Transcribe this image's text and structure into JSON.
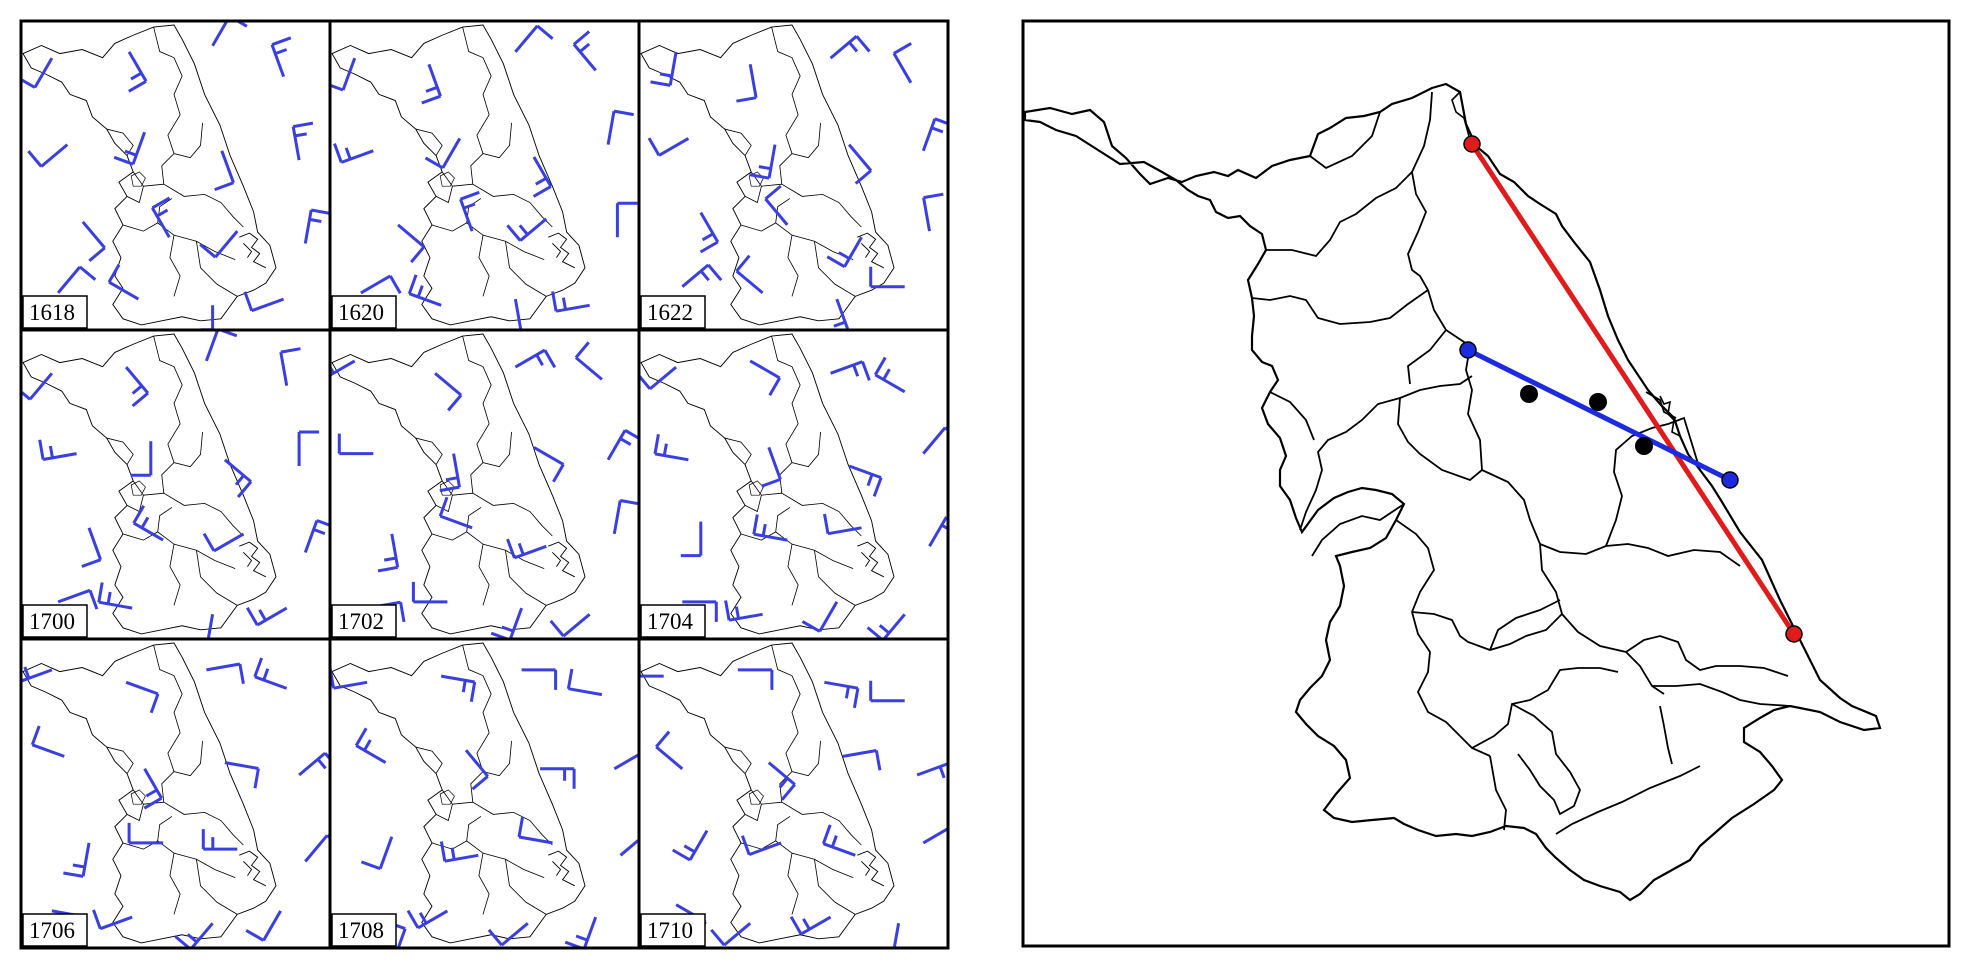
{
  "wind_panels": [
    {
      "label": "1618",
      "barbs": [
        [
          0.1,
          0.12,
          210,
          1
        ],
        [
          0.35,
          0.1,
          150,
          2
        ],
        [
          0.62,
          0.08,
          30,
          1
        ],
        [
          0.85,
          0.18,
          340,
          2
        ],
        [
          0.15,
          0.4,
          230,
          1
        ],
        [
          0.4,
          0.36,
          200,
          2
        ],
        [
          0.65,
          0.42,
          160,
          1
        ],
        [
          0.9,
          0.45,
          350,
          2
        ],
        [
          0.2,
          0.65,
          140,
          1
        ],
        [
          0.48,
          0.7,
          330,
          2
        ],
        [
          0.7,
          0.68,
          220,
          1
        ],
        [
          0.92,
          0.72,
          10,
          2
        ],
        [
          0.12,
          0.88,
          40,
          1
        ],
        [
          0.38,
          0.9,
          300,
          1
        ],
        [
          0.62,
          0.92,
          180,
          2
        ],
        [
          0.85,
          0.9,
          250,
          1
        ]
      ]
    },
    {
      "label": "1620",
      "barbs": [
        [
          0.08,
          0.12,
          200,
          1
        ],
        [
          0.32,
          0.14,
          160,
          2
        ],
        [
          0.6,
          0.1,
          40,
          1
        ],
        [
          0.86,
          0.16,
          320,
          2
        ],
        [
          0.14,
          0.42,
          250,
          2
        ],
        [
          0.42,
          0.38,
          210,
          1
        ],
        [
          0.66,
          0.44,
          150,
          2
        ],
        [
          0.9,
          0.4,
          10,
          1
        ],
        [
          0.22,
          0.66,
          130,
          1
        ],
        [
          0.46,
          0.68,
          340,
          2
        ],
        [
          0.7,
          0.64,
          230,
          2
        ],
        [
          0.93,
          0.7,
          0,
          1
        ],
        [
          0.1,
          0.88,
          60,
          1
        ],
        [
          0.36,
          0.92,
          290,
          2
        ],
        [
          0.6,
          0.9,
          170,
          1
        ],
        [
          0.84,
          0.92,
          260,
          2
        ]
      ]
    },
    {
      "label": "1622",
      "barbs": [
        [
          0.12,
          0.1,
          190,
          2
        ],
        [
          0.36,
          0.14,
          170,
          1
        ],
        [
          0.62,
          0.12,
          50,
          2
        ],
        [
          0.88,
          0.2,
          330,
          1
        ],
        [
          0.16,
          0.38,
          240,
          1
        ],
        [
          0.44,
          0.4,
          190,
          2
        ],
        [
          0.68,
          0.4,
          140,
          1
        ],
        [
          0.92,
          0.42,
          20,
          2
        ],
        [
          0.2,
          0.62,
          150,
          2
        ],
        [
          0.48,
          0.66,
          320,
          1
        ],
        [
          0.72,
          0.7,
          210,
          2
        ],
        [
          0.94,
          0.68,
          350,
          1
        ],
        [
          0.14,
          0.86,
          50,
          2
        ],
        [
          0.4,
          0.88,
          310,
          1
        ],
        [
          0.64,
          0.9,
          160,
          2
        ],
        [
          0.86,
          0.86,
          270,
          1
        ]
      ]
    },
    {
      "label": "1700",
      "barbs": [
        [
          0.1,
          0.14,
          220,
          1
        ],
        [
          0.34,
          0.12,
          140,
          2
        ],
        [
          0.6,
          0.1,
          20,
          1
        ],
        [
          0.86,
          0.18,
          350,
          1
        ],
        [
          0.18,
          0.4,
          260,
          2
        ],
        [
          0.42,
          0.36,
          180,
          1
        ],
        [
          0.66,
          0.42,
          130,
          2
        ],
        [
          0.9,
          0.44,
          0,
          1
        ],
        [
          0.22,
          0.64,
          160,
          1
        ],
        [
          0.46,
          0.68,
          300,
          2
        ],
        [
          0.72,
          0.66,
          240,
          1
        ],
        [
          0.92,
          0.72,
          20,
          2
        ],
        [
          0.12,
          0.88,
          70,
          1
        ],
        [
          0.36,
          0.9,
          280,
          2
        ],
        [
          0.62,
          0.92,
          190,
          1
        ],
        [
          0.86,
          0.9,
          240,
          2
        ]
      ]
    },
    {
      "label": "1702",
      "barbs": [
        [
          0.08,
          0.1,
          240,
          2
        ],
        [
          0.34,
          0.14,
          130,
          1
        ],
        [
          0.6,
          0.12,
          60,
          2
        ],
        [
          0.88,
          0.16,
          310,
          1
        ],
        [
          0.14,
          0.4,
          270,
          1
        ],
        [
          0.4,
          0.4,
          170,
          2
        ],
        [
          0.66,
          0.38,
          120,
          1
        ],
        [
          0.9,
          0.42,
          30,
          2
        ],
        [
          0.2,
          0.66,
          170,
          2
        ],
        [
          0.46,
          0.64,
          290,
          1
        ],
        [
          0.7,
          0.7,
          250,
          2
        ],
        [
          0.92,
          0.66,
          10,
          1
        ],
        [
          0.12,
          0.9,
          80,
          2
        ],
        [
          0.38,
          0.88,
          270,
          1
        ],
        [
          0.62,
          0.9,
          200,
          2
        ],
        [
          0.84,
          0.92,
          230,
          1
        ]
      ]
    },
    {
      "label": "1704",
      "barbs": [
        [
          0.12,
          0.12,
          230,
          1
        ],
        [
          0.36,
          0.1,
          120,
          1
        ],
        [
          0.62,
          0.14,
          70,
          2
        ],
        [
          0.86,
          0.2,
          300,
          2
        ],
        [
          0.16,
          0.42,
          280,
          2
        ],
        [
          0.42,
          0.38,
          160,
          1
        ],
        [
          0.68,
          0.44,
          110,
          2
        ],
        [
          0.92,
          0.4,
          40,
          1
        ],
        [
          0.2,
          0.62,
          180,
          1
        ],
        [
          0.48,
          0.68,
          280,
          2
        ],
        [
          0.72,
          0.64,
          260,
          1
        ],
        [
          0.94,
          0.7,
          30,
          2
        ],
        [
          0.14,
          0.88,
          90,
          1
        ],
        [
          0.4,
          0.92,
          260,
          2
        ],
        [
          0.64,
          0.88,
          210,
          1
        ],
        [
          0.86,
          0.92,
          220,
          2
        ]
      ]
    },
    {
      "label": "1706",
      "barbs": [
        [
          0.1,
          0.1,
          250,
          2
        ],
        [
          0.34,
          0.14,
          110,
          1
        ],
        [
          0.6,
          0.1,
          80,
          1
        ],
        [
          0.86,
          0.16,
          290,
          2
        ],
        [
          0.14,
          0.38,
          290,
          1
        ],
        [
          0.4,
          0.42,
          150,
          2
        ],
        [
          0.66,
          0.4,
          100,
          1
        ],
        [
          0.9,
          0.44,
          50,
          2
        ],
        [
          0.22,
          0.66,
          190,
          2
        ],
        [
          0.46,
          0.66,
          270,
          1
        ],
        [
          0.7,
          0.68,
          270,
          2
        ],
        [
          0.92,
          0.72,
          40,
          1
        ],
        [
          0.1,
          0.88,
          100,
          2
        ],
        [
          0.36,
          0.9,
          250,
          1
        ],
        [
          0.62,
          0.92,
          220,
          2
        ],
        [
          0.84,
          0.88,
          210,
          1
        ]
      ]
    },
    {
      "label": "1708",
      "barbs": [
        [
          0.12,
          0.14,
          260,
          1
        ],
        [
          0.36,
          0.12,
          100,
          2
        ],
        [
          0.62,
          0.1,
          90,
          1
        ],
        [
          0.88,
          0.18,
          280,
          1
        ],
        [
          0.18,
          0.4,
          300,
          2
        ],
        [
          0.44,
          0.36,
          140,
          1
        ],
        [
          0.68,
          0.42,
          90,
          2
        ],
        [
          0.92,
          0.42,
          60,
          1
        ],
        [
          0.2,
          0.64,
          200,
          1
        ],
        [
          0.48,
          0.7,
          260,
          2
        ],
        [
          0.72,
          0.66,
          280,
          1
        ],
        [
          0.94,
          0.7,
          50,
          2
        ],
        [
          0.14,
          0.9,
          110,
          1
        ],
        [
          0.38,
          0.88,
          240,
          2
        ],
        [
          0.64,
          0.92,
          230,
          1
        ],
        [
          0.86,
          0.9,
          200,
          2
        ]
      ]
    },
    {
      "label": "1710",
      "barbs": [
        [
          0.08,
          0.12,
          270,
          2
        ],
        [
          0.32,
          0.1,
          90,
          1
        ],
        [
          0.6,
          0.14,
          100,
          2
        ],
        [
          0.86,
          0.2,
          270,
          1
        ],
        [
          0.14,
          0.42,
          310,
          1
        ],
        [
          0.42,
          0.4,
          130,
          2
        ],
        [
          0.66,
          0.38,
          80,
          1
        ],
        [
          0.9,
          0.44,
          70,
          2
        ],
        [
          0.22,
          0.62,
          210,
          2
        ],
        [
          0.46,
          0.66,
          250,
          1
        ],
        [
          0.7,
          0.7,
          290,
          2
        ],
        [
          0.92,
          0.66,
          60,
          1
        ],
        [
          0.12,
          0.86,
          120,
          2
        ],
        [
          0.36,
          0.92,
          230,
          1
        ],
        [
          0.62,
          0.9,
          240,
          2
        ],
        [
          0.84,
          0.92,
          190,
          1
        ]
      ]
    }
  ],
  "cross_sections": [
    {
      "name": "",
      "color": "#e01b1b",
      "start_marker_color": "#e01b1b"
    },
    {
      "name": "",
      "color": "#1d2be0",
      "start_marker_color": "#1d2be0"
    }
  ],
  "stations": [
    {
      "label": ""
    },
    {
      "label": ""
    },
    {
      "label": ""
    }
  ],
  "colors": {
    "barb": "#3a3fe0",
    "boundary": "#000000",
    "frame": "#000000"
  }
}
